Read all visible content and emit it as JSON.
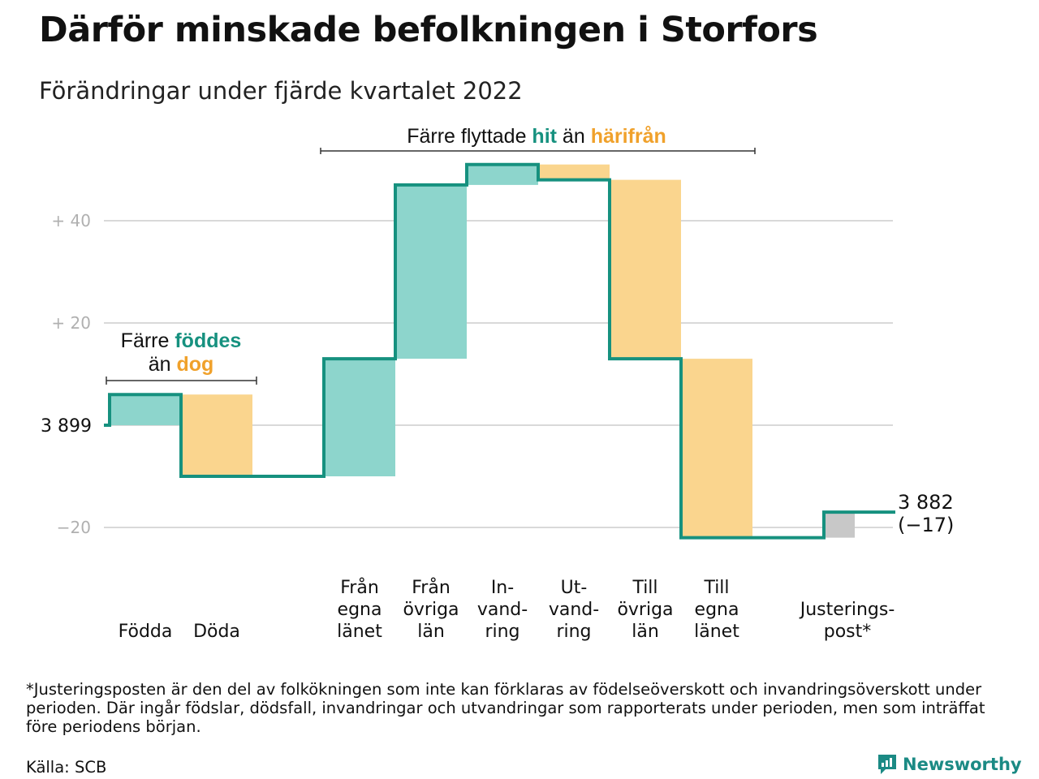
{
  "title": "Därför minskade befolkningen i Storfors",
  "subtitle": "Förändringar under fjärde kvartalet 2022",
  "chart_data": {
    "type": "waterfall",
    "start": {
      "label": "3 899",
      "value": 3899
    },
    "end": {
      "label": "3 882",
      "change_label": "(−17)",
      "value": 3882
    },
    "y_ticks": [
      {
        "value": 40,
        "label": "+ 40"
      },
      {
        "value": 20,
        "label": "+ 20"
      },
      {
        "value": 0,
        "label": ""
      },
      {
        "value": -20,
        "label": "−20"
      }
    ],
    "ylim": [
      -22,
      51
    ],
    "grid": true,
    "steps": [
      {
        "label": [
          "Födda"
        ],
        "value": 6,
        "kind": "in",
        "slot": 0
      },
      {
        "label": [
          "Döda"
        ],
        "value": -16,
        "kind": "out",
        "slot": 1
      },
      {
        "label": [
          "Från",
          "egna",
          "länet"
        ],
        "value": 23,
        "kind": "in",
        "slot": 3
      },
      {
        "label": [
          "Från",
          "övriga",
          "län"
        ],
        "value": 34,
        "kind": "in",
        "slot": 4
      },
      {
        "label": [
          "In-",
          "vand-",
          "ring"
        ],
        "value": 4,
        "kind": "in",
        "slot": 5
      },
      {
        "label": [
          "Ut-",
          "vand-",
          "ring"
        ],
        "value": -3,
        "kind": "out",
        "slot": 6
      },
      {
        "label": [
          "Till",
          "övriga",
          "län"
        ],
        "value": -35,
        "kind": "out",
        "slot": 7
      },
      {
        "label": [
          "Till",
          "egna",
          "länet"
        ],
        "value": -35,
        "kind": "out",
        "slot": 8
      },
      {
        "label": [
          "Justerings-",
          "post*"
        ],
        "value": 5,
        "kind": "adjust",
        "slot": 10
      }
    ],
    "annotations": {
      "births": {
        "line1": "Färre",
        "hl1": "föddes",
        "line2": "än",
        "hl2": "dog"
      },
      "moves": {
        "pre": "Färre flyttade",
        "hl1": "hit",
        "mid": "än",
        "hl2": "härifrån"
      }
    },
    "colors": {
      "in_fill": "#8dd5cc",
      "out_fill": "#fad58e",
      "adjust_fill": "#c8c8c8",
      "line": "#16917f",
      "accent_in": "#16917f",
      "accent_out": "#f0a12b",
      "grid": "#d9d9d9"
    }
  },
  "footnote": "*Justeringsposten är den del av folkökningen som inte kan förklaras av födelseöverskott och invandringsöverskott under perioden. Där ingår födslar, dödsfall, invandringar och utvandringar som rapporterats under perioden, men som inträffat före periodens början.",
  "source": "Källa: SCB",
  "brand": {
    "name": "Newsworthy",
    "icon": "newsworthy-logo-icon",
    "color": "#1b8a84"
  }
}
